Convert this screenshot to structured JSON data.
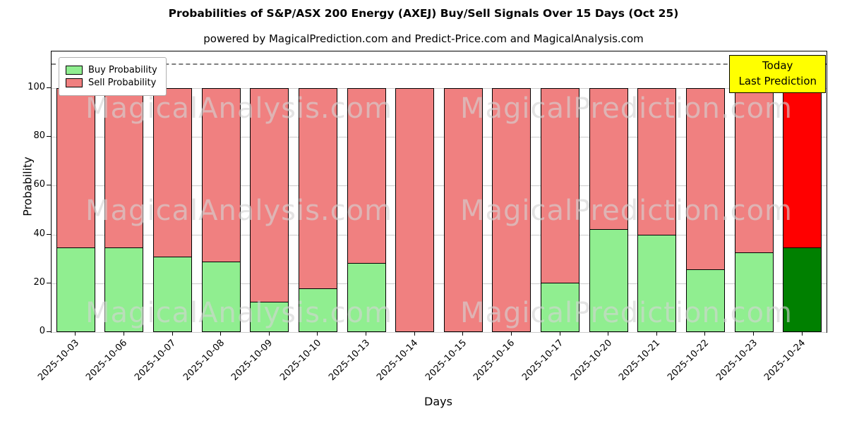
{
  "title": "Probabilities of S&P/ASX 200 Energy (AXEJ) Buy/Sell Signals Over 15 Days (Oct 25)",
  "subtitle": "powered by MagicalPrediction.com and Predict-Price.com and MagicalAnalysis.com",
  "legend": [
    {
      "label": "Buy Probability",
      "color": "#90ee90"
    },
    {
      "label": "Sell Probability",
      "color": "#f08080"
    }
  ],
  "annotation": {
    "lines": [
      "Today",
      "Last Prediction"
    ],
    "bg": "#ffff00"
  },
  "watermarks": [
    "MagicalAnalysis.com",
    "MagicalPrediction.com"
  ],
  "chart_data": {
    "type": "bar",
    "stacked": true,
    "title": "Probabilities of S&P/ASX 200 Energy (AXEJ) Buy/Sell Signals Over 15 Days (Oct 25)",
    "xlabel": "Days",
    "ylabel": "Probability",
    "categories": [
      "2025-10-03",
      "2025-10-06",
      "2025-10-07",
      "2025-10-08",
      "2025-10-09",
      "2025-10-10",
      "2025-10-13",
      "2025-10-14",
      "2025-10-15",
      "2025-10-16",
      "2025-10-17",
      "2025-10-20",
      "2025-10-21",
      "2025-10-22",
      "2025-10-23",
      "2025-10-24"
    ],
    "series": [
      {
        "name": "Buy Probability",
        "color": "#90ee90",
        "last_color": "#008000",
        "values": [
          34.5,
          34.5,
          30.5,
          28.5,
          12,
          17.5,
          28,
          0,
          0,
          0,
          20,
          42,
          39.5,
          25.5,
          32.5,
          34.5
        ]
      },
      {
        "name": "Sell Probability",
        "color": "#f08080",
        "last_color": "#ff0000",
        "values": [
          65.5,
          65.5,
          69.5,
          71.5,
          88,
          82.5,
          72,
          100,
          100,
          100,
          80,
          58,
          60.5,
          74.5,
          67.5,
          65.5
        ]
      }
    ],
    "ylim": [
      0,
      115
    ],
    "yticks": [
      0,
      20,
      40,
      60,
      80,
      100
    ],
    "dashed_line_y": 110,
    "grid": true,
    "legend_position": "upper left",
    "bar_width_ratio": 0.8
  }
}
